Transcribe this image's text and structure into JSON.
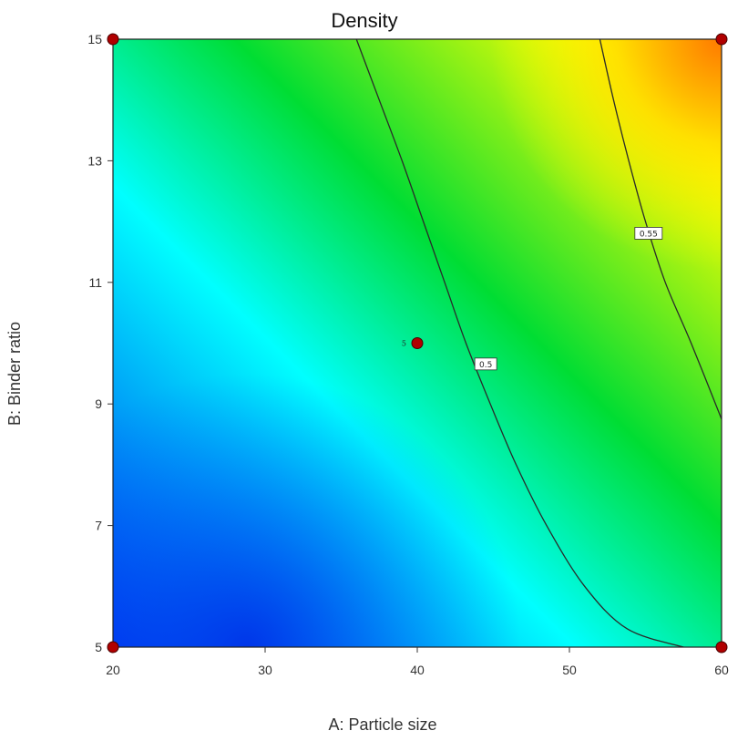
{
  "chart_data": {
    "type": "contour",
    "title": "Density",
    "xlabel": "A: Particle size",
    "ylabel": "B: Binder ratio",
    "xlim": [
      20,
      60
    ],
    "ylim": [
      5,
      15
    ],
    "xticks": [
      20,
      30,
      40,
      50,
      60
    ],
    "yticks": [
      5,
      7,
      9,
      11,
      13,
      15
    ],
    "grid": false,
    "colormap": [
      "#0033ee",
      "#00ffff",
      "#00dd33",
      "#ffff00",
      "#ff6a00"
    ],
    "contours": [
      {
        "level": "0.5",
        "label_at": [
          44.5,
          9.65
        ],
        "points": [
          [
            36,
            15
          ],
          [
            37.5,
            14
          ],
          [
            39,
            13
          ],
          [
            40.4,
            12
          ],
          [
            41.8,
            11
          ],
          [
            43.2,
            10
          ],
          [
            44.8,
            9
          ],
          [
            46.5,
            8
          ],
          [
            48.5,
            7
          ],
          [
            51,
            6
          ],
          [
            53.8,
            5.3
          ],
          [
            57.5,
            5
          ]
        ]
      },
      {
        "level": "0.55",
        "label_at": [
          55.2,
          11.8
        ],
        "points": [
          [
            52,
            15
          ],
          [
            52.9,
            14
          ],
          [
            53.9,
            13
          ],
          [
            55,
            12
          ],
          [
            56.3,
            11
          ],
          [
            58,
            10
          ],
          [
            60,
            8.75
          ]
        ]
      }
    ],
    "design_points": [
      {
        "x": 20,
        "y": 5,
        "label": ""
      },
      {
        "x": 20,
        "y": 15,
        "label": ""
      },
      {
        "x": 60,
        "y": 5,
        "label": ""
      },
      {
        "x": 60,
        "y": 15,
        "label": ""
      },
      {
        "x": 40,
        "y": 10,
        "label": "5"
      }
    ]
  }
}
